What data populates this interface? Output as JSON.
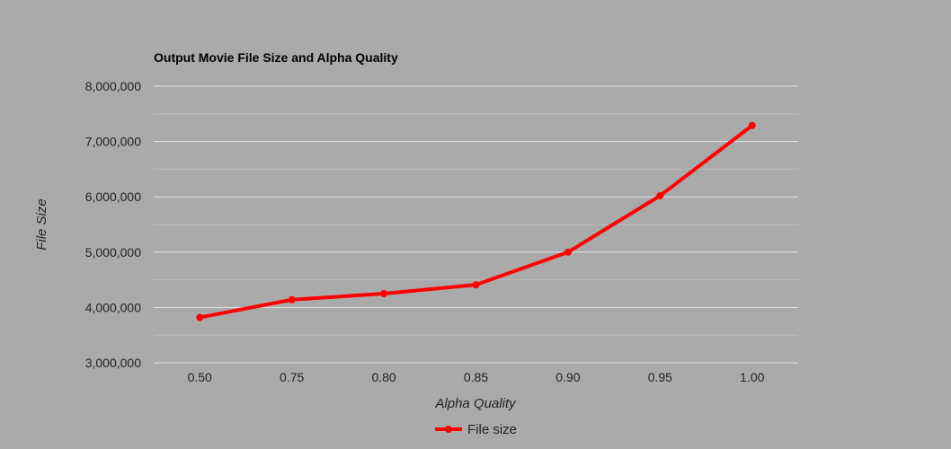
{
  "chart_data": {
    "type": "line",
    "title": "Output Movie File Size and Alpha Quality",
    "xlabel": "Alpha Quality",
    "ylabel": "File Size",
    "categories": [
      "0.50",
      "0.75",
      "0.80",
      "0.85",
      "0.90",
      "0.95",
      "1.00"
    ],
    "series": [
      {
        "name": "File size",
        "color": "#ff0000",
        "values": [
          3820000,
          4140000,
          4250000,
          4410000,
          5000000,
          6020000,
          7290000
        ]
      }
    ],
    "ylim": [
      3000000,
      8000000
    ],
    "yticks": [
      "3,000,000",
      "4,000,000",
      "5,000,000",
      "6,000,000",
      "7,000,000",
      "8,000,000"
    ],
    "ytick_values": [
      3000000,
      4000000,
      5000000,
      6000000,
      7000000,
      8000000
    ],
    "grid": true,
    "legend_position": "bottom",
    "background": "#aaaaaa"
  }
}
